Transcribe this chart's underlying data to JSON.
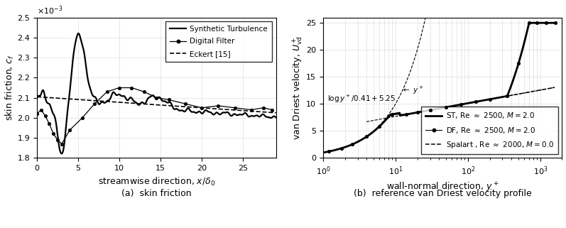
{
  "fig_width": 7.97,
  "fig_height": 3.21,
  "dpi": 100,
  "left_xlabel": "streamwise direction, $x/\\delta_0$",
  "left_ylabel": "skin friction, $c_f$",
  "left_xlim": [
    0,
    29
  ],
  "left_ylim": [
    0.0018,
    0.0025
  ],
  "left_yticks": [
    0.0018,
    0.0019,
    0.002,
    0.0021,
    0.0022,
    0.0023,
    0.0024,
    0.0025
  ],
  "left_ytick_labels": [
    "1.8",
    "1.9",
    "2.0",
    "2.1",
    "2.2",
    "2.3",
    "2.4",
    "2.5"
  ],
  "left_xticks": [
    0,
    5,
    10,
    15,
    20,
    25
  ],
  "right_xlabel": "wall-normal direction, $y^+$",
  "right_ylabel": "van Driest velocity, $U^+_{\\mathrm{vd}}$",
  "right_ylim": [
    0,
    26
  ],
  "right_yticks": [
    0,
    5,
    10,
    15,
    20,
    25
  ],
  "legend1_entries": [
    "Synthetic Turbulence",
    "Digital Filter",
    "Eckert "
  ],
  "legend2_entries": [
    "ST, Re $\\approx$ 2500, $M = 2.0$",
    "DF, Re $\\approx$ 2500, $M = 2.0$",
    "Spalart , Re $\\approx$ 2000, $M = 0.0$"
  ],
  "subtitle_left": "(a)  skin friction",
  "subtitle_right": "(b)  reference van Driest velocity profile",
  "bg_color": "white"
}
